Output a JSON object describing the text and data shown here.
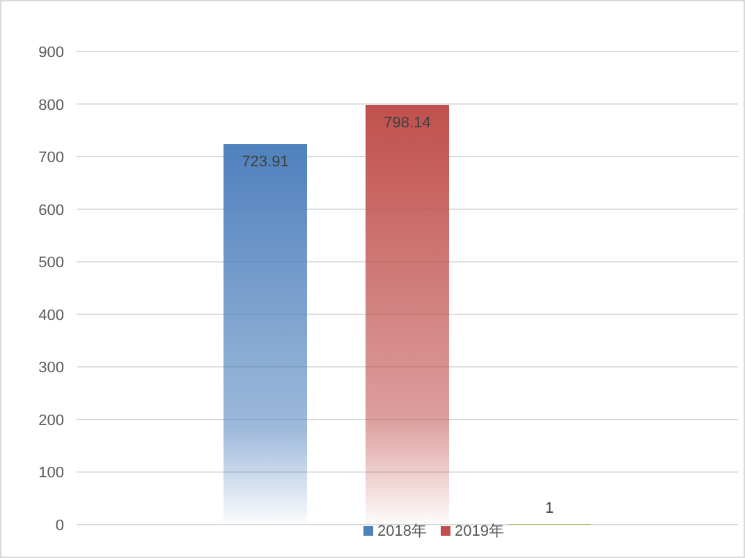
{
  "chart_data": {
    "type": "bar",
    "categories": [
      null
    ],
    "series": [
      {
        "name": "2018年",
        "color": "#4f81bd",
        "values": [
          723.91
        ]
      },
      {
        "name": "2019年",
        "color": "#c0504d",
        "values": [
          798.14
        ]
      },
      {
        "color": "#9bbb59",
        "values": [
          1
        ]
      }
    ],
    "ylim": [
      0,
      900
    ],
    "yticks": [
      0,
      100,
      200,
      300,
      400,
      500,
      600,
      700,
      800,
      900
    ],
    "grid": "y",
    "legend": "bottom",
    "data_labels": true
  }
}
